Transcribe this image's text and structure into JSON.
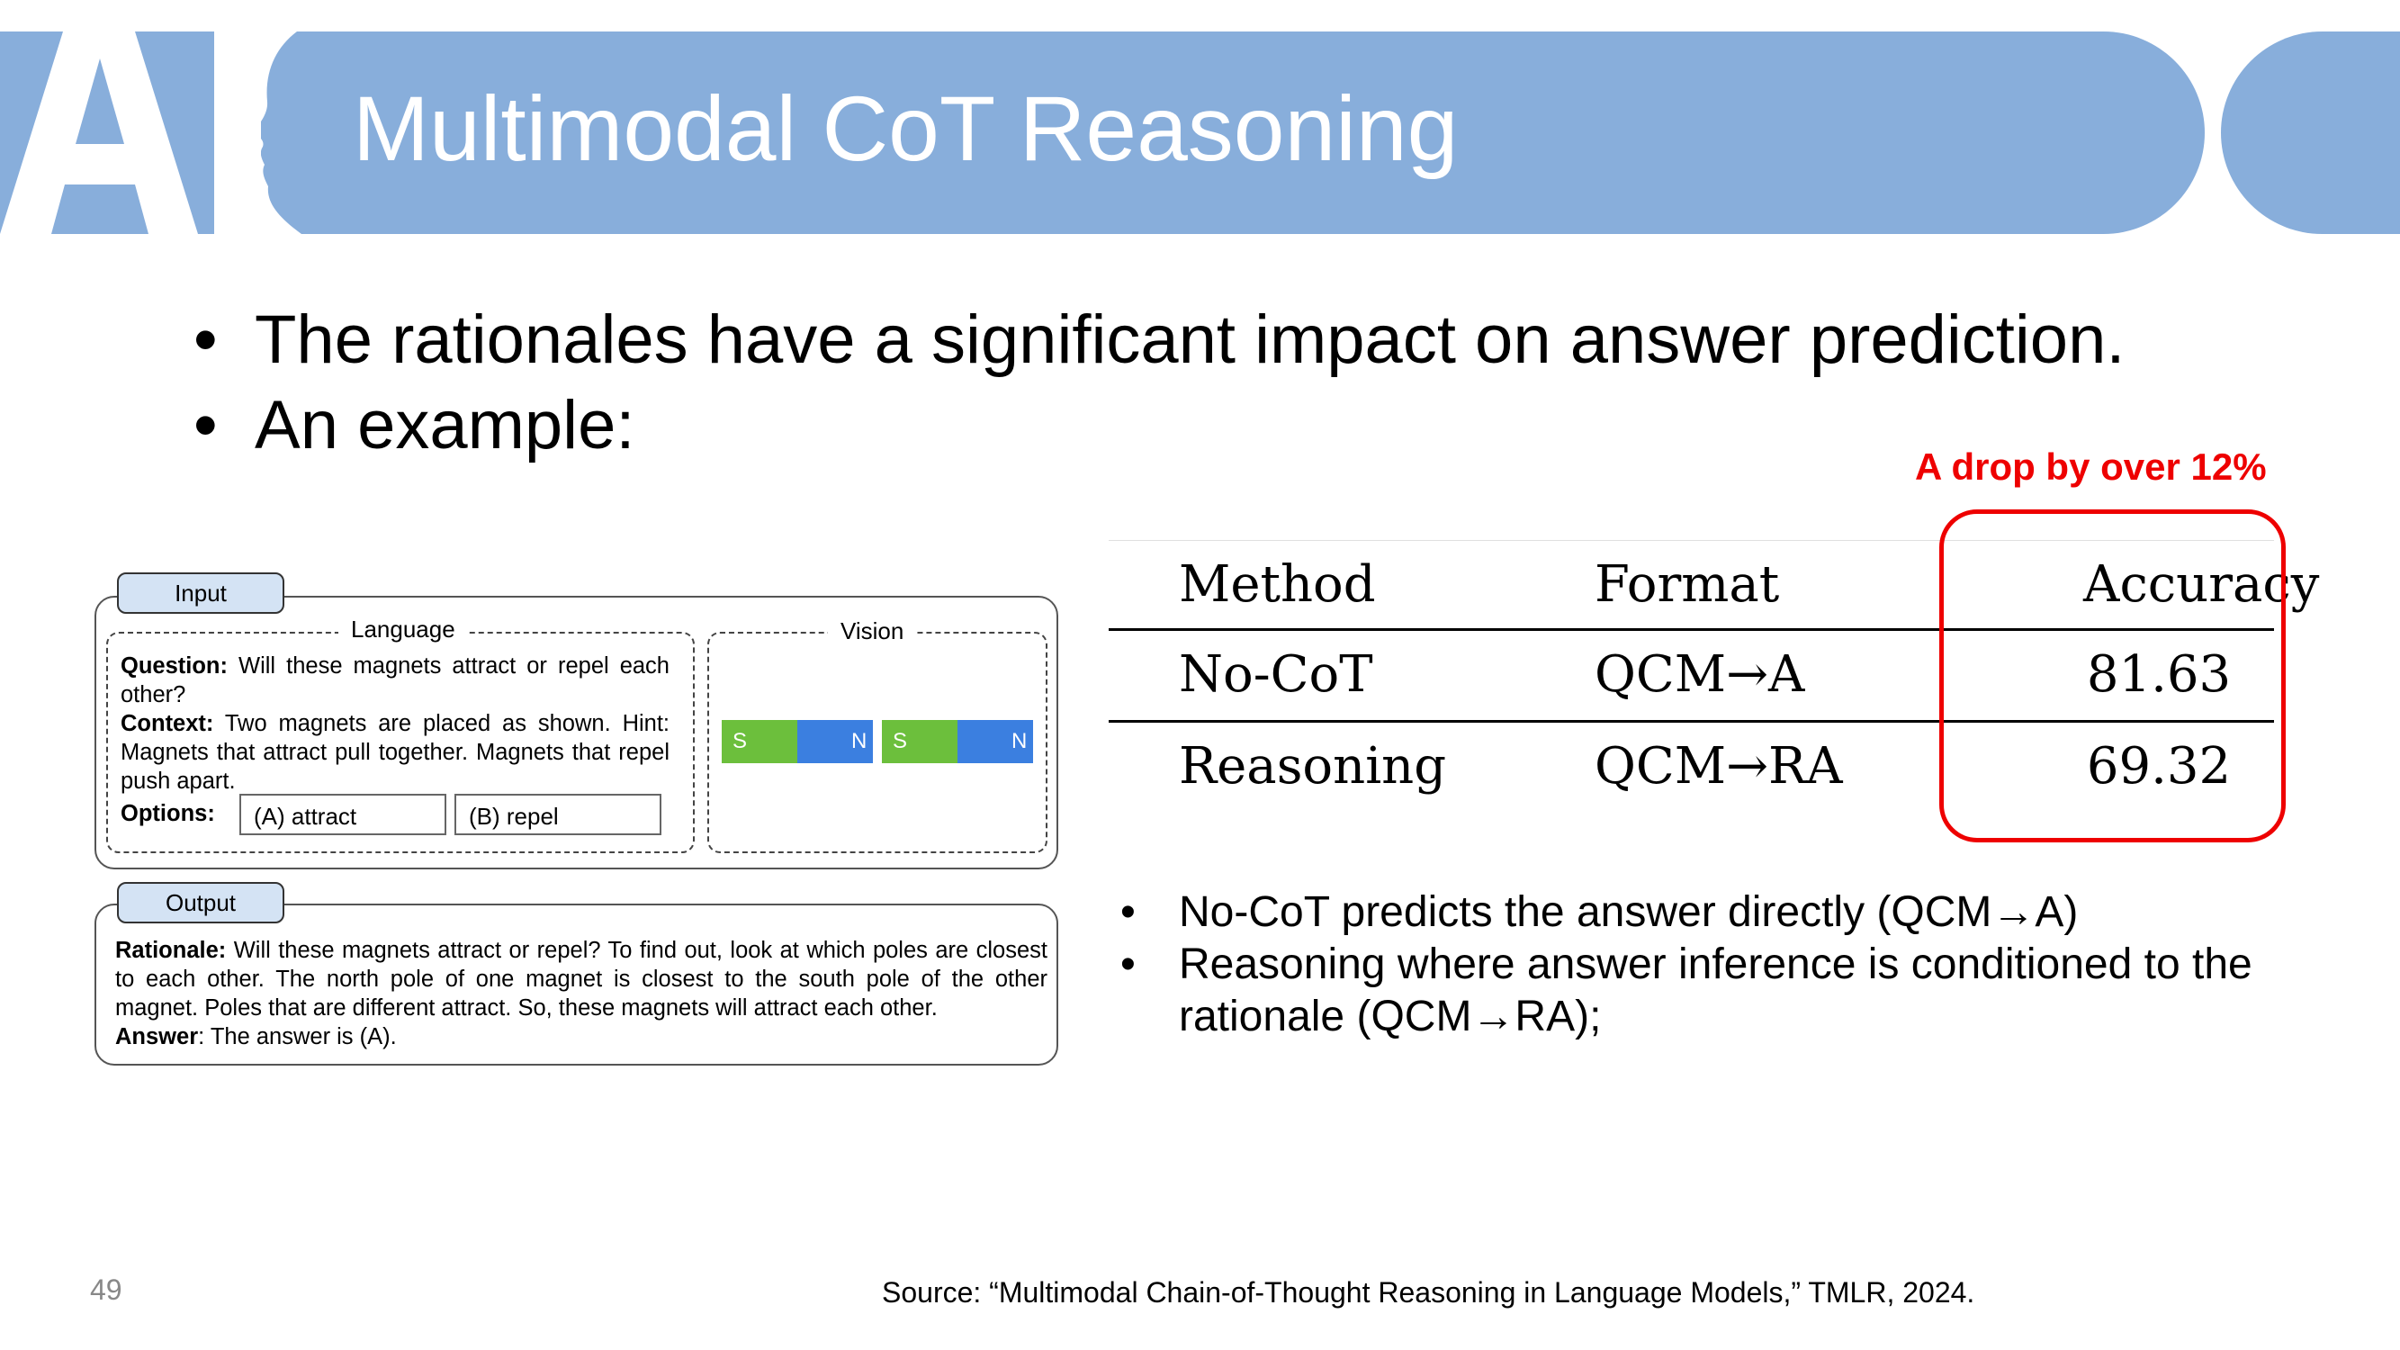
{
  "slide": {
    "title": "Multimodal CoT Reasoning",
    "bullets": [
      "The rationales have a significant impact on answer prediction.",
      "An example:"
    ],
    "bullet_glyph": "•",
    "page_number": "49",
    "source": "Source: “Multimodal Chain-of-Thought Reasoning in Language Models,” TMLR, 2024.",
    "colors": {
      "header": "#88aedb",
      "highlight": "#ee0000"
    }
  },
  "logo": {
    "text": "AI",
    "icon": "ai-head-logo-icon"
  },
  "figure": {
    "input_tab": "Input",
    "output_tab": "Output",
    "language_label": "Language",
    "vision_label": "Vision",
    "question_label": "Question:",
    "question_text": "Will these magnets attract or repel each other?",
    "context_label": "Context:",
    "context_text": "Two magnets are placed as shown. Hint: Magnets that attract pull together. Magnets that repel push apart.",
    "options_label": "Options:",
    "option_a": "(A) attract",
    "option_b": "(B) repel",
    "magnets": [
      {
        "left": "S",
        "right": "N"
      },
      {
        "left": "S",
        "right": "N"
      }
    ],
    "magnet_colors": {
      "south": "#6cbf3c",
      "north": "#3b7fe0"
    },
    "rationale_label": "Rationale:",
    "rationale_text": "Will these magnets attract or repel? To find out, look at which poles are closest to each other. The north pole of one magnet is closest to the south pole of the other magnet. Poles that are different attract. So, these magnets will attract each other.",
    "answer_label": "Answer",
    "answer_text": ": The answer is (A)."
  },
  "table": {
    "headers": [
      "Method",
      "Format",
      "Accuracy"
    ],
    "rows": [
      [
        "No-CoT",
        "QCM→A",
        "81.63"
      ],
      [
        "Reasoning",
        "QCM→RA",
        "69.32"
      ]
    ],
    "annotation": "A drop by over 12%"
  },
  "notes": [
    "No-CoT predicts the answer directly (QCM→A)",
    "Reasoning where answer inference is conditioned to the rationale (QCM→RA);"
  ]
}
